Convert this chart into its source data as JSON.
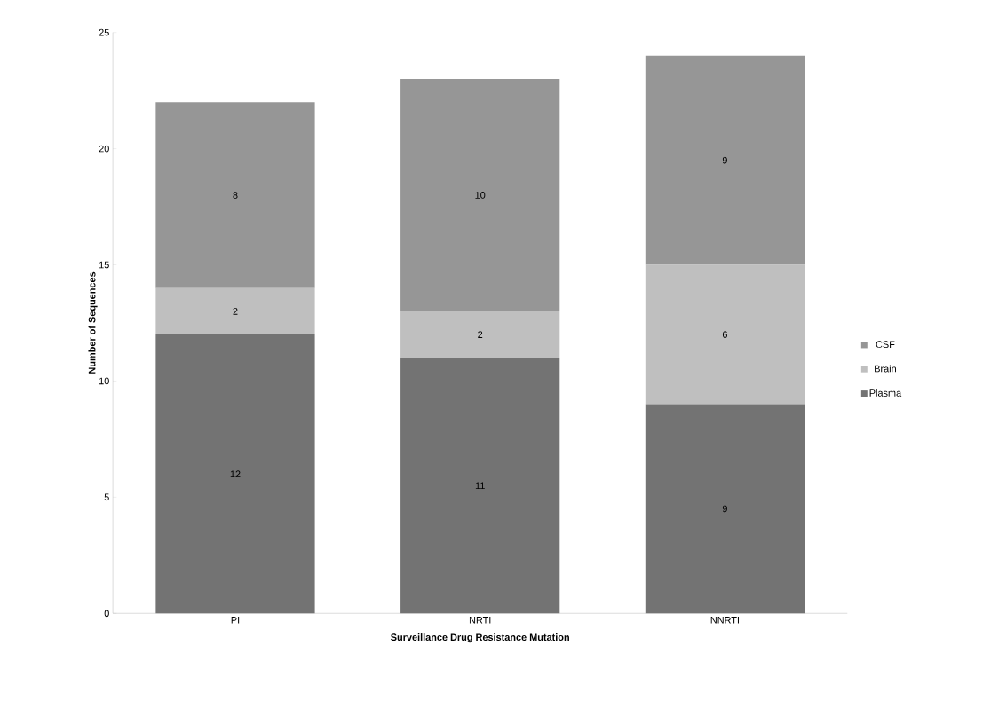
{
  "chart_data": {
    "type": "bar",
    "stacked": true,
    "xlabel": "Surveillance Drug Resistance Mutation",
    "ylabel": "Number of Sequences",
    "categories": [
      "PI",
      "NRTI",
      "NNRTI"
    ],
    "series": [
      {
        "name": "Plasma",
        "color": "#737373",
        "values": [
          12,
          11,
          9
        ]
      },
      {
        "name": "Brain",
        "color": "#bfbfbf",
        "values": [
          2,
          2,
          6
        ]
      },
      {
        "name": "CSF",
        "color": "#969696",
        "values": [
          8,
          10,
          9
        ]
      }
    ],
    "ylim": [
      0,
      25
    ],
    "yticks": [
      0,
      5,
      10,
      15,
      20,
      25
    ],
    "legend": "right",
    "data_labels": true,
    "grid": false
  }
}
